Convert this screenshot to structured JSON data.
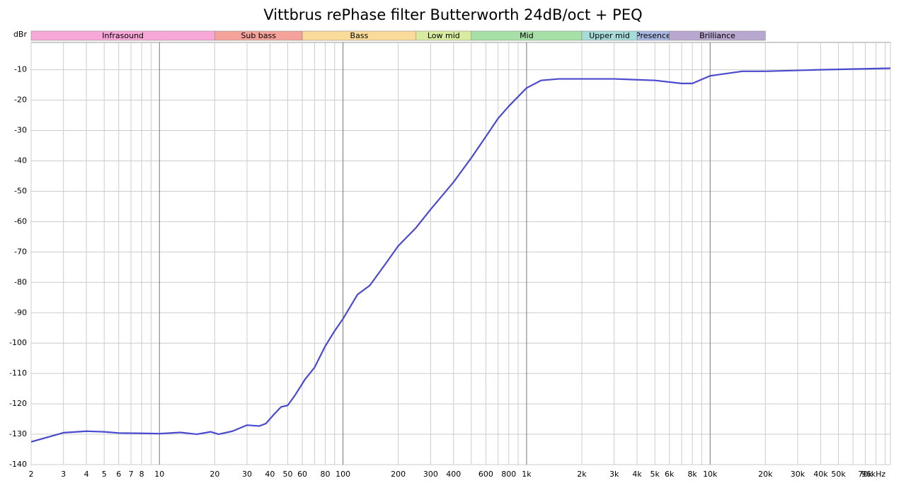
{
  "chart_data": {
    "type": "line",
    "title": "Vittbrus rePhase filter Butterworth 24dB/oct + PEQ",
    "y_label": "dBr",
    "log_x": true,
    "grid": true,
    "xlim": [
      2,
      96000
    ],
    "ylim": [
      -140,
      -1
    ],
    "xticks": [
      2,
      3,
      4,
      5,
      6,
      7,
      8,
      10,
      20,
      30,
      40,
      50,
      60,
      80,
      100,
      200,
      300,
      400,
      600,
      800,
      {
        "value": 1000,
        "label": "1k"
      },
      {
        "value": 2000,
        "label": "2k"
      },
      {
        "value": 3000,
        "label": "3k"
      },
      {
        "value": 4000,
        "label": "4k"
      },
      {
        "value": 5000,
        "label": "5k"
      },
      {
        "value": 6000,
        "label": "6k"
      },
      {
        "value": 8000,
        "label": "8k"
      },
      {
        "value": 10000,
        "label": "10k"
      },
      {
        "value": 20000,
        "label": "20k"
      },
      {
        "value": 30000,
        "label": "30k"
      },
      {
        "value": 40000,
        "label": "40k"
      },
      {
        "value": 50000,
        "label": "50k"
      },
      {
        "value": 70000,
        "label": "70k"
      },
      {
        "value": 96000,
        "label": "96kHz"
      }
    ],
    "x_minor_grid": [
      9,
      70,
      90,
      500,
      700,
      900,
      7000,
      9000,
      60000,
      80000,
      90000
    ],
    "yticks": [
      -140,
      -130,
      -120,
      -110,
      -100,
      -90,
      -80,
      -70,
      -60,
      -50,
      -40,
      -30,
      -20,
      -10
    ],
    "bands": [
      {
        "name": "Infrasound",
        "range": [
          2,
          20
        ],
        "color": "#f7a8d8"
      },
      {
        "name": "Sub bass",
        "range": [
          20,
          60
        ],
        "color": "#f4a29a"
      },
      {
        "name": "Bass",
        "range": [
          60,
          250
        ],
        "color": "#fbdb9a"
      },
      {
        "name": "Low mid",
        "range": [
          250,
          500
        ],
        "color": "#d8eca0"
      },
      {
        "name": "Mid",
        "range": [
          500,
          2000
        ],
        "color": "#a6e0a6"
      },
      {
        "name": "Upper mid",
        "range": [
          2000,
          4000
        ],
        "color": "#a6dcd8"
      },
      {
        "name": "Presence",
        "range": [
          4000,
          6000
        ],
        "color": "#a8b8e0"
      },
      {
        "name": "Brilliance",
        "range": [
          6000,
          20000
        ],
        "color": "#b8a8d0"
      }
    ],
    "series": [
      {
        "color": "#4a4acf",
        "x": [
          2,
          3,
          4,
          5,
          6,
          8,
          10,
          13,
          16,
          19,
          21,
          25,
          30,
          35,
          38,
          42,
          46,
          50,
          55,
          62,
          70,
          80,
          90,
          100,
          120,
          140,
          170,
          200,
          250,
          300,
          400,
          500,
          600,
          700,
          800,
          1000,
          1200,
          1500,
          2000,
          3000,
          5000,
          7000,
          8000,
          10000,
          15000,
          20000,
          40000,
          96000
        ],
        "values": [
          -132.5,
          -129.5,
          -129,
          -129.2,
          -129.6,
          -129.7,
          -129.8,
          -129.4,
          -130,
          -129.2,
          -130,
          -129,
          -127,
          -127.3,
          -126.5,
          -123.5,
          -121,
          -120.5,
          -117,
          -112,
          -108,
          -101,
          -96,
          -92,
          -84,
          -81,
          -74,
          -68,
          -62,
          -56,
          -47,
          -39,
          -32,
          -26,
          -22,
          -16,
          -13.5,
          -13,
          -13,
          -13,
          -13.5,
          -14.5,
          -14.5,
          -12,
          -10.5,
          -10.5,
          -10,
          -9.5
        ]
      }
    ]
  }
}
